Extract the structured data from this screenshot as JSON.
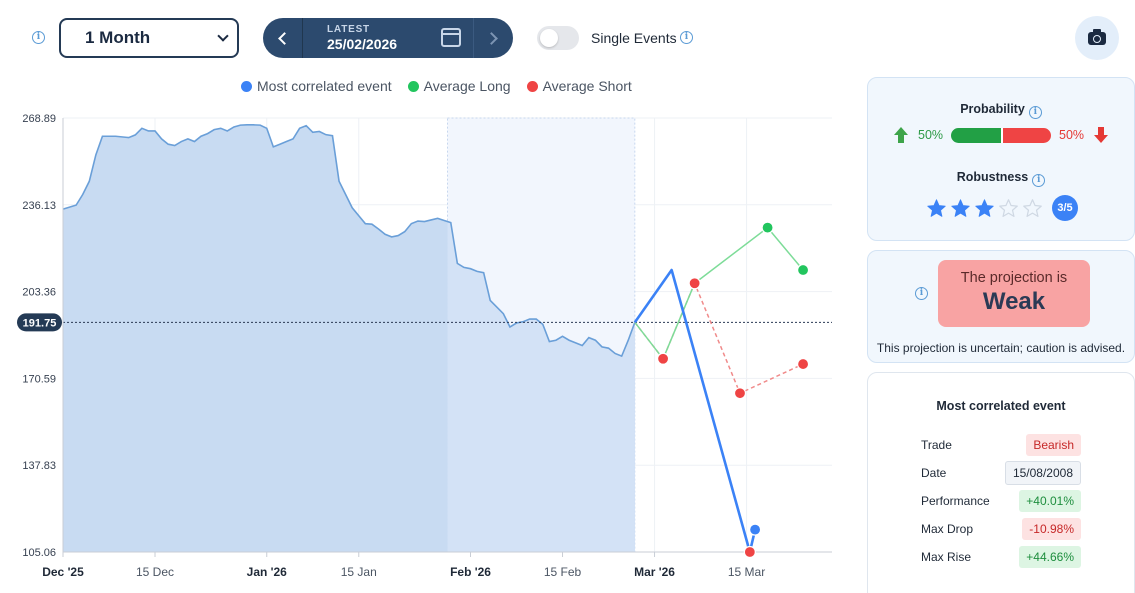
{
  "toolbar": {
    "period_value": "1 Month",
    "date_nav": {
      "label": "LATEST",
      "date": "25/02/2026"
    },
    "single_events_label": "Single Events",
    "single_events_on": false
  },
  "chart_data": {
    "type": "line",
    "legend": [
      "Most correlated event",
      "Average Long",
      "Average Short"
    ],
    "colors": {
      "event": "#3b82f6",
      "long": "#22c55e",
      "short": "#ef4444",
      "area": "#c5d9f1",
      "area_line": "#6a9fd8"
    },
    "y_ticks": [
      "268.89",
      "236.13",
      "203.36",
      "170.59",
      "137.83",
      "105.06"
    ],
    "ylim": [
      105.06,
      268.89
    ],
    "current_value": 191.75,
    "current_label": "191.75",
    "x_labels": [
      {
        "text": "Dec '25",
        "bold": true
      },
      {
        "text": "15 Dec",
        "bold": false
      },
      {
        "text": "Jan '26",
        "bold": true
      },
      {
        "text": "15 Jan",
        "bold": false
      },
      {
        "text": "Feb '26",
        "bold": true
      },
      {
        "text": "15 Feb",
        "bold": false
      },
      {
        "text": "Mar '26",
        "bold": true
      },
      {
        "text": "15 Mar",
        "bold": false
      }
    ],
    "history": [
      [
        0,
        234.5
      ],
      [
        2,
        236
      ],
      [
        3,
        240
      ],
      [
        4,
        245
      ],
      [
        5,
        255
      ],
      [
        6,
        262
      ],
      [
        8,
        262
      ],
      [
        10,
        261.5
      ],
      [
        11,
        262.5
      ],
      [
        12,
        265
      ],
      [
        13,
        264
      ],
      [
        14,
        264
      ],
      [
        15,
        261
      ],
      [
        16,
        259
      ],
      [
        17,
        258.5
      ],
      [
        18,
        260
      ],
      [
        19,
        261
      ],
      [
        20,
        260
      ],
      [
        21,
        262
      ],
      [
        22,
        263
      ],
      [
        23,
        264.5
      ],
      [
        24,
        265
      ],
      [
        25,
        264
      ],
      [
        26,
        265.5
      ],
      [
        27,
        266.2
      ],
      [
        28,
        266.3
      ],
      [
        29,
        266.3
      ],
      [
        30,
        266.2
      ],
      [
        31,
        265
      ],
      [
        32,
        258
      ],
      [
        33,
        259
      ],
      [
        34,
        260
      ],
      [
        35,
        261
      ],
      [
        36,
        265
      ],
      [
        37,
        266
      ],
      [
        38,
        263.5
      ],
      [
        39,
        263.8
      ],
      [
        40,
        262.6
      ],
      [
        41,
        262.2
      ],
      [
        42,
        245
      ],
      [
        43,
        240
      ],
      [
        44,
        235
      ],
      [
        45,
        232
      ],
      [
        46,
        229
      ],
      [
        47,
        228.8
      ],
      [
        48,
        227
      ],
      [
        49,
        225
      ],
      [
        50,
        224
      ],
      [
        51,
        224.5
      ],
      [
        52,
        226
      ],
      [
        53,
        229
      ],
      [
        54,
        230
      ],
      [
        55,
        229.8
      ],
      [
        56,
        230.4
      ],
      [
        57,
        231
      ],
      [
        58,
        230.2
      ],
      [
        59,
        229.4
      ],
      [
        60,
        214
      ],
      [
        61,
        212.5
      ],
      [
        62,
        212
      ],
      [
        63,
        211
      ],
      [
        64,
        210.5
      ],
      [
        65,
        200
      ],
      [
        66,
        197.5
      ],
      [
        67,
        195
      ],
      [
        68,
        190
      ],
      [
        69,
        191.5
      ],
      [
        70,
        192
      ],
      [
        71,
        193
      ],
      [
        72,
        193
      ],
      [
        73,
        191
      ],
      [
        74,
        184.5
      ],
      [
        75,
        185
      ],
      [
        76,
        186.5
      ],
      [
        77,
        185
      ],
      [
        78,
        184
      ],
      [
        79,
        183
      ],
      [
        80,
        186
      ],
      [
        81,
        185
      ],
      [
        82,
        182.5
      ],
      [
        83,
        182
      ],
      [
        84,
        180
      ],
      [
        85,
        179
      ],
      [
        86,
        185
      ],
      [
        87,
        191.75
      ]
    ],
    "history_highlight_from": 58.5,
    "projections": {
      "event": [
        [
          87,
          191.75
        ],
        [
          92.6,
          211.5
        ],
        [
          104.5,
          105.06
        ],
        [
          105.3,
          113.5
        ]
      ],
      "long": [
        [
          87,
          191.75
        ],
        [
          91.3,
          178
        ],
        [
          96.1,
          206.5
        ],
        [
          107.2,
          227.5
        ],
        [
          112.6,
          211.5
        ]
      ],
      "short": [
        [
          87,
          191.75
        ],
        [
          91.3,
          178
        ],
        [
          96.1,
          206.5
        ],
        [
          103,
          165
        ],
        [
          112.6,
          176
        ]
      ]
    }
  },
  "probability": {
    "title": "Probability",
    "up_pct": "50%",
    "down_pct": "50%",
    "up_fraction": 0.5
  },
  "robustness": {
    "title": "Robustness",
    "stars": 3,
    "max_stars": 5,
    "badge": "3/5"
  },
  "projection": {
    "line1": "The projection is",
    "strength": "Weak",
    "note": "This projection is uncertain; caution is advised."
  },
  "event": {
    "title": "Most correlated event",
    "rows": [
      {
        "label": "Trade",
        "value": "Bearish",
        "style": "red"
      },
      {
        "label": "Date",
        "value": "15/08/2008",
        "style": "grey"
      },
      {
        "label": "Performance",
        "value": "+40.01%",
        "style": "green"
      },
      {
        "label": "Max Drop",
        "value": "-10.98%",
        "style": "red"
      },
      {
        "label": "Max Rise",
        "value": "+44.66%",
        "style": "green"
      }
    ]
  }
}
